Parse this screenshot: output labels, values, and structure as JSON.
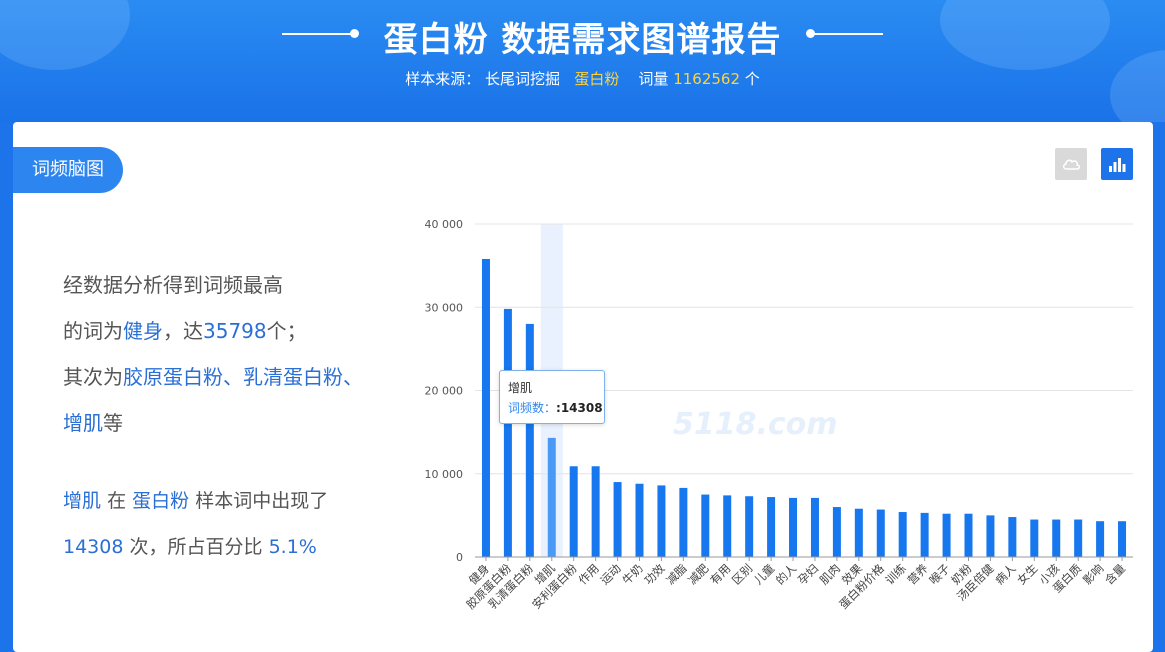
{
  "header": {
    "title": "蛋白粉 数据需求图谱报告",
    "sample_label": "样本来源：",
    "sample_source": "长尾词挖掘",
    "keyword": "蛋白粉",
    "count_label": "词量",
    "count_value": "1162562",
    "count_unit": "个"
  },
  "tab": {
    "label": "词频脑图"
  },
  "toolbar": {
    "wordcloud_icon": "cloud-icon",
    "barchart_icon": "bar-chart-icon"
  },
  "summary": {
    "line1": "经数据分析得到词频最高",
    "line2_prefix": "的词为",
    "top_word": "健身",
    "line2_mid": "，达",
    "top_count": "35798",
    "line2_suffix": "个；",
    "line3_prefix": "其次为",
    "second_words": "胶原蛋白粉、乳清蛋白粉、",
    "third_word": "增肌",
    "line4_suffix": "等"
  },
  "detail": {
    "word": "增肌",
    "in_text": "在",
    "keyword": "蛋白粉",
    "appear_text": "样本词中出现了",
    "count": "14308",
    "tail_text": "次，所占百分比",
    "percent": "5.1%"
  },
  "tooltip": {
    "title": "增肌",
    "label": "词频数：",
    "value": ":14308"
  },
  "watermark": "5118.com",
  "chart_data": {
    "type": "bar",
    "categories": [
      "健身",
      "胶原蛋白粉",
      "乳清蛋白粉",
      "增肌",
      "安利蛋白粉",
      "作用",
      "运动",
      "牛奶",
      "功效",
      "减脂",
      "减肥",
      "有用",
      "区别",
      "儿童",
      "的人",
      "孕妇",
      "肌肉",
      "效果",
      "蛋白粉价格",
      "训练",
      "营养",
      "喉子",
      "奶粉",
      "汤臣倍健",
      "病人",
      "女生",
      "小孩",
      "蛋白质",
      "影响",
      "含量"
    ],
    "values": [
      35798,
      29800,
      28000,
      14308,
      10900,
      10900,
      9000,
      8800,
      8600,
      8300,
      7500,
      7400,
      7300,
      7200,
      7100,
      7100,
      6000,
      5800,
      5700,
      5400,
      5300,
      5200,
      5200,
      5000,
      4800,
      4500,
      4500,
      4500,
      4300,
      4300
    ],
    "highlight_index": 3,
    "yticks": [
      0,
      10000,
      20000,
      30000,
      40000
    ],
    "ytick_labels": [
      "0",
      "10 000",
      "20 000",
      "30 000",
      "40 000"
    ],
    "ylim": [
      0,
      40000
    ],
    "grid": true,
    "colors": {
      "bar": "#1677ee",
      "highlight_bar": "#4a9af5",
      "highlight_band": "#e8f1fd"
    }
  }
}
